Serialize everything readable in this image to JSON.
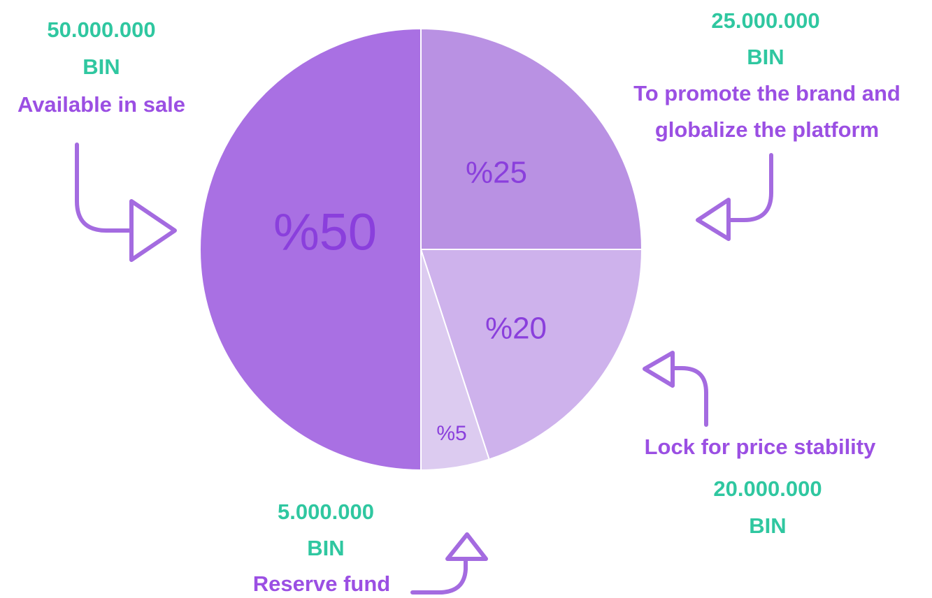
{
  "chart_data": {
    "type": "pie",
    "values": [
      25,
      20,
      5,
      50
    ],
    "value_labels": [
      "%25",
      "%20",
      "%5",
      "%50"
    ],
    "colors": [
      "#b991e3",
      "#ceb2ec",
      "#dccbf0",
      "#a970e3"
    ],
    "annotations": [
      {
        "amount": "25.000.000",
        "unit": "BIN",
        "label_lines": [
          "To promote the brand and",
          "globalize the platform"
        ]
      },
      {
        "amount": "20.000.000",
        "unit": "BIN",
        "label_lines": [
          "Lock for price stability"
        ]
      },
      {
        "amount": "5.000.000",
        "unit": "BIN",
        "label_lines": [
          "Reserve fund"
        ]
      },
      {
        "amount": "50.000.000",
        "unit": "BIN",
        "label_lines": [
          "Available in sale"
        ]
      }
    ]
  }
}
